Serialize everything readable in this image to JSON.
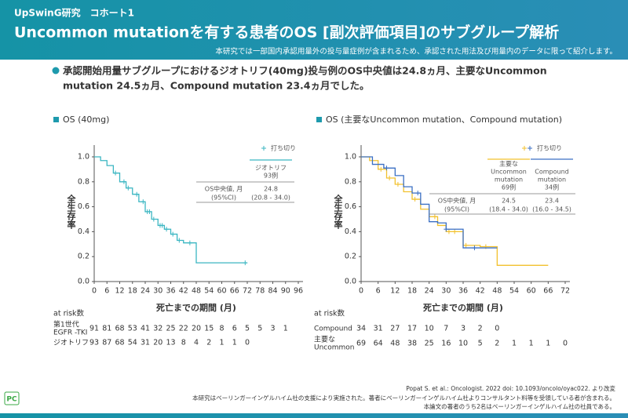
{
  "header": {
    "study": "UpSwinG研究　コホート1",
    "title": "Uncommon mutationを有する患者のOS [副次評価項目]のサブグループ解析",
    "note": "本研究では一部国内承認用量外の投与量症例が含まれるため、承認された用法及び用量内のデータに限って紹介します。"
  },
  "summary": [
    "承認開始用量サブグループにおけるジオトリフ(40mg)投与例のOS中央値は24.8ヵ月、主要なUncommon",
    "mutation 24.5ヵ月、Compound mutation 23.4ヵ月でした。"
  ],
  "chart_data": [
    {
      "type": "step",
      "title": "OS (40mg)",
      "xlabel": "死亡までの期間 (月)",
      "ylabel": "全生存率",
      "xlim": [
        0,
        96
      ],
      "xticks": [
        0,
        6,
        12,
        18,
        24,
        30,
        36,
        42,
        48,
        54,
        60,
        66,
        72,
        78,
        84,
        90,
        96
      ],
      "ylim": [
        0,
        1
      ],
      "yticks": [
        {
          "value": 0,
          "label": "0.0"
        },
        0.2,
        0.4,
        0.6,
        0.8,
        {
          "value": 1,
          "label": "1.0"
        }
      ],
      "legend_label": "打ち切り",
      "median_label": [
        "OS中央値, 月",
        "(95%CI)"
      ],
      "series": [
        {
          "name": [
            "ジオトリフ"
          ],
          "n": "93例",
          "color": "#3bb6c2",
          "median": 24.8,
          "ci": "(20.8 - 34.0)",
          "x": [
            0,
            3,
            6,
            9,
            12,
            15,
            18,
            21,
            24,
            27,
            30,
            33,
            36,
            39,
            42,
            48,
            72
          ],
          "values": [
            1,
            0.97,
            0.93,
            0.87,
            0.8,
            0.75,
            0.7,
            0.64,
            0.56,
            0.5,
            0.45,
            0.42,
            0.38,
            0.33,
            0.31,
            0.15,
            0.15
          ],
          "censor_x": [
            10,
            14,
            16,
            20,
            23,
            25,
            26,
            28,
            31,
            32,
            34,
            37,
            40,
            45,
            71
          ],
          "censor_values": [
            0.87,
            0.8,
            0.75,
            0.7,
            0.64,
            0.56,
            0.56,
            0.5,
            0.45,
            0.45,
            0.42,
            0.38,
            0.33,
            0.31,
            0.15
          ]
        }
      ],
      "risk_table": {
        "label": "at risk数",
        "rows": [
          {
            "name": [
              "第1世代",
              "EGFR -TKI"
            ],
            "values": [
              91,
              81,
              68,
              53,
              41,
              32,
              25,
              22,
              20,
              15,
              8,
              6,
              5,
              5,
              3,
              1
            ]
          },
          {
            "name": [
              "ジオトリフ"
            ],
            "values": [
              93,
              87,
              68,
              54,
              31,
              20,
              13,
              8,
              4,
              2,
              1,
              1,
              0
            ]
          }
        ]
      }
    },
    {
      "type": "step",
      "title": "OS (主要なUncommon mutation、Compound mutation)",
      "xlabel": "死亡までの期間 (月)",
      "ylabel": "全生存率",
      "xlim": [
        0,
        72
      ],
      "xticks": [
        0,
        6,
        12,
        18,
        24,
        30,
        36,
        42,
        48,
        54,
        60,
        66,
        72
      ],
      "ylim": [
        0,
        1
      ],
      "yticks": [
        {
          "value": 0,
          "label": "0.0"
        },
        0.2,
        0.4,
        0.6,
        0.8,
        {
          "value": 1,
          "label": "1.0"
        }
      ],
      "legend_label": "打ち切り",
      "median_label": [
        "OS中央値, 月",
        "(95%CI)"
      ],
      "series": [
        {
          "name": [
            "主要な",
            "Uncommon",
            "mutation"
          ],
          "n": "69例",
          "color": "#f2c12e",
          "median": 24.5,
          "ci": "(18.4 - 34.0)",
          "x": [
            0,
            3,
            6,
            9,
            12,
            15,
            18,
            21,
            24,
            27,
            30,
            36,
            42,
            48,
            66
          ],
          "values": [
            1,
            0.97,
            0.9,
            0.83,
            0.78,
            0.72,
            0.66,
            0.58,
            0.52,
            0.45,
            0.4,
            0.29,
            0.28,
            0.13,
            0.13
          ],
          "censor_x": [
            7,
            10,
            13,
            19,
            26,
            31,
            33,
            37,
            44
          ],
          "censor_values": [
            0.9,
            0.83,
            0.78,
            0.66,
            0.52,
            0.4,
            0.4,
            0.29,
            0.28
          ]
        },
        {
          "name": [
            "Compound",
            "mutation"
          ],
          "n": "34例",
          "color": "#3a6fc4",
          "median": 23.4,
          "ci": "(16.0 - 34.5)",
          "x": [
            0,
            4,
            8,
            12,
            15,
            18,
            21,
            24,
            27,
            30,
            36,
            48
          ],
          "values": [
            1,
            0.94,
            0.91,
            0.85,
            0.76,
            0.71,
            0.62,
            0.48,
            0.47,
            0.42,
            0.27,
            0.27
          ],
          "censor_x": [
            9,
            20,
            30,
            40
          ],
          "censor_values": [
            0.91,
            0.71,
            0.42,
            0.27
          ]
        }
      ],
      "risk_table": {
        "label": "at risk数",
        "rows": [
          {
            "name": [
              "Compound"
            ],
            "values": [
              34,
              31,
              27,
              17,
              10,
              7,
              3,
              2,
              0
            ]
          },
          {
            "name": [
              "主要な",
              "Uncommon"
            ],
            "values": [
              69,
              64,
              48,
              38,
              25,
              16,
              10,
              5,
              2,
              1,
              1,
              1,
              0
            ]
          }
        ]
      }
    }
  ],
  "footer": [
    "Popat S. et al.: Oncologist. 2022 doi: 10.1093/oncolo/oyac022. より改変",
    "本研究はベーリンガーインゲルハイム社の支援により実施された。著者にベーリンガーインゲルハイム社よりコンサルタント料等を受領している者が含まれる。",
    "本論文の著者のうち2名はベーリンガーインゲルハイム社の社員である。"
  ],
  "logo": "PC"
}
